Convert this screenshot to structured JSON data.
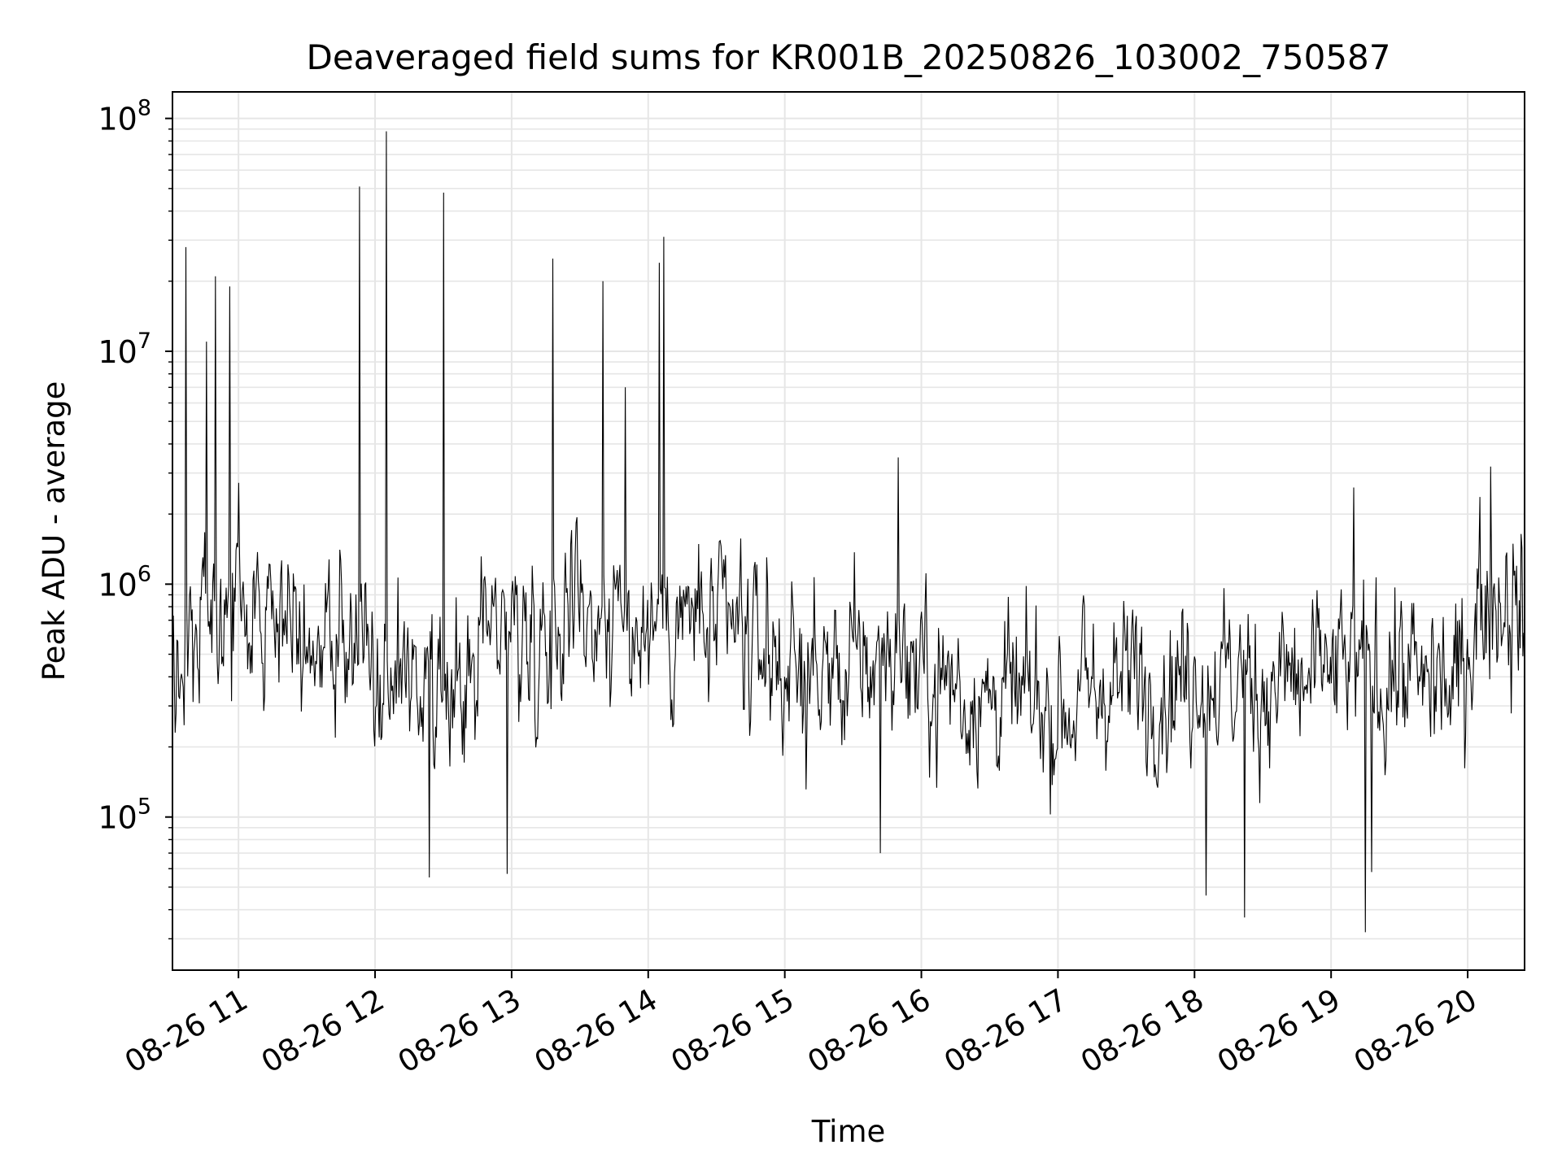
{
  "chart_data": {
    "type": "line",
    "title": "Deaveraged field sums for KR001B_20250826_103002_750587",
    "xlabel": "Time",
    "ylabel": "Peak ADU - average",
    "yscale": "log",
    "grid": true,
    "grid_minor": true,
    "line_color": "#000000",
    "grid_color": "#e6e6e6",
    "xlim": [
      "2025-08-26 10:31",
      "2025-08-26 20:25"
    ],
    "ylim": [
      22000,
      130000000
    ],
    "y_ticks": [
      {
        "value": 100000,
        "base": "10",
        "exp": "5"
      },
      {
        "value": 1000000,
        "base": "10",
        "exp": "6"
      },
      {
        "value": 10000000,
        "base": "10",
        "exp": "7"
      },
      {
        "value": 100000000,
        "base": "10",
        "exp": "8"
      }
    ],
    "x_ticks": [
      {
        "t": "2025-08-26 11:00",
        "label": "08-26 11"
      },
      {
        "t": "2025-08-26 12:00",
        "label": "08-26 12"
      },
      {
        "t": "2025-08-26 13:00",
        "label": "08-26 13"
      },
      {
        "t": "2025-08-26 14:00",
        "label": "08-26 14"
      },
      {
        "t": "2025-08-26 15:00",
        "label": "08-26 15"
      },
      {
        "t": "2025-08-26 16:00",
        "label": "08-26 16"
      },
      {
        "t": "2025-08-26 17:00",
        "label": "08-26 17"
      },
      {
        "t": "2025-08-26 18:00",
        "label": "08-26 18"
      },
      {
        "t": "2025-08-26 19:00",
        "label": "08-26 19"
      },
      {
        "t": "2025-08-26 20:00",
        "label": "08-26 20"
      }
    ],
    "series": [
      {
        "baseline": [
          {
            "t": "2025-08-26 10:31",
            "y": 500000
          },
          {
            "t": "2025-08-26 10:45",
            "y": 650000
          },
          {
            "t": "2025-08-26 11:05",
            "y": 800000
          },
          {
            "t": "2025-08-26 11:20",
            "y": 900000
          },
          {
            "t": "2025-08-26 11:40",
            "y": 550000
          },
          {
            "t": "2025-08-26 11:55",
            "y": 600000
          },
          {
            "t": "2025-08-26 12:00",
            "y": 300000
          },
          {
            "t": "2025-08-26 12:15",
            "y": 400000
          },
          {
            "t": "2025-08-26 12:25",
            "y": 220000
          },
          {
            "t": "2025-08-26 12:40",
            "y": 300000
          },
          {
            "t": "2025-08-26 12:50",
            "y": 800000
          },
          {
            "t": "2025-08-26 13:10",
            "y": 600000
          },
          {
            "t": "2025-08-26 13:30",
            "y": 1000000
          },
          {
            "t": "2025-08-26 13:50",
            "y": 600000
          },
          {
            "t": "2025-08-26 14:10",
            "y": 700000
          },
          {
            "t": "2025-08-26 14:40",
            "y": 600000
          },
          {
            "t": "2025-08-26 15:10",
            "y": 400000
          },
          {
            "t": "2025-08-26 15:50",
            "y": 500000
          },
          {
            "t": "2025-08-26 16:20",
            "y": 350000
          },
          {
            "t": "2025-08-26 17:00",
            "y": 300000
          },
          {
            "t": "2025-08-26 17:30",
            "y": 380000
          },
          {
            "t": "2025-08-26 18:00",
            "y": 400000
          },
          {
            "t": "2025-08-26 18:30",
            "y": 380000
          },
          {
            "t": "2025-08-26 19:00",
            "y": 400000
          },
          {
            "t": "2025-08-26 19:30",
            "y": 420000
          },
          {
            "t": "2025-08-26 19:55",
            "y": 350000
          },
          {
            "t": "2025-08-26 20:05",
            "y": 900000
          },
          {
            "t": "2025-08-26 20:25",
            "y": 700000
          }
        ],
        "spikes": [
          {
            "t": "2025-08-26 10:37",
            "y": 28000000
          },
          {
            "t": "2025-08-26 10:46",
            "y": 11000000
          },
          {
            "t": "2025-08-26 10:50",
            "y": 21000000
          },
          {
            "t": "2025-08-26 10:56",
            "y": 19000000
          },
          {
            "t": "2025-08-26 11:53",
            "y": 51000000
          },
          {
            "t": "2025-08-26 12:05",
            "y": 88000000
          },
          {
            "t": "2025-08-26 12:30",
            "y": 48000000
          },
          {
            "t": "2025-08-26 13:18",
            "y": 25000000
          },
          {
            "t": "2025-08-26 13:40",
            "y": 20000000
          },
          {
            "t": "2025-08-26 13:50",
            "y": 7000000
          },
          {
            "t": "2025-08-26 14:05",
            "y": 24000000
          },
          {
            "t": "2025-08-26 14:07",
            "y": 31000000
          },
          {
            "t": "2025-08-26 15:50",
            "y": 3500000
          },
          {
            "t": "2025-08-26 19:10",
            "y": 2600000
          },
          {
            "t": "2025-08-26 20:10",
            "y": 3200000
          }
        ],
        "dips": [
          {
            "t": "2025-08-26 12:24",
            "y": 55000
          },
          {
            "t": "2025-08-26 12:58",
            "y": 57000
          },
          {
            "t": "2025-08-26 15:42",
            "y": 70000
          },
          {
            "t": "2025-08-26 18:05",
            "y": 46000
          },
          {
            "t": "2025-08-26 18:22",
            "y": 37000
          },
          {
            "t": "2025-08-26 19:15",
            "y": 32000
          },
          {
            "t": "2025-08-26 19:18",
            "y": 58000
          }
        ]
      }
    ]
  }
}
